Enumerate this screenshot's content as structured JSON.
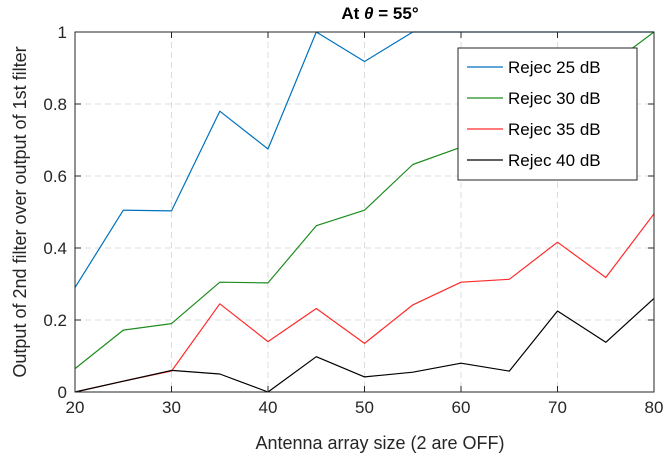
{
  "chart_data": {
    "type": "line",
    "title_prefix": "At ",
    "title_symbol": "θ",
    "title_suffix": " = 55°",
    "xlabel": "Antenna array size (2 are OFF)",
    "ylabel": "Output of 2nd filter over output of 1st filter",
    "xlim": [
      20,
      80
    ],
    "ylim": [
      0,
      1
    ],
    "x_ticks": [
      20,
      30,
      40,
      50,
      60,
      70,
      80
    ],
    "y_ticks": [
      0,
      0.2,
      0.4,
      0.6,
      0.8,
      1
    ],
    "x_tick_labels": [
      "20",
      "30",
      "40",
      "50",
      "60",
      "70",
      "80"
    ],
    "y_tick_labels": [
      "0",
      "0.2",
      "0.4",
      "0.6",
      "0.8",
      "1"
    ],
    "grid": true,
    "legend_position": "top-right",
    "x": [
      20,
      25,
      30,
      35,
      40,
      45,
      50,
      55,
      60,
      65,
      70,
      75,
      80
    ],
    "series": [
      {
        "name": "Rejec 25 dB",
        "color": "#0072BD",
        "values": [
          0.29,
          0.505,
          0.503,
          0.78,
          0.675,
          1.0,
          0.918,
          1.0,
          1.0,
          1.0,
          1.0,
          1.0,
          1.0
        ]
      },
      {
        "name": "Rejec 30 dB",
        "color": "#1E8C1E",
        "values": [
          0.065,
          0.172,
          0.19,
          0.305,
          0.303,
          0.462,
          0.505,
          0.632,
          0.68,
          0.78,
          0.86,
          0.9,
          1.0
        ]
      },
      {
        "name": "Rejec 35 dB",
        "color": "#FF2A2A",
        "values": [
          0.0,
          0.03,
          0.058,
          0.245,
          0.14,
          0.232,
          0.135,
          0.242,
          0.305,
          0.313,
          0.416,
          0.318,
          0.495
        ]
      },
      {
        "name": "Rejec 40 dB",
        "color": "#000000",
        "values": [
          0.0,
          0.03,
          0.06,
          0.05,
          0.0,
          0.098,
          0.042,
          0.055,
          0.08,
          0.058,
          0.225,
          0.138,
          0.26
        ]
      }
    ]
  }
}
